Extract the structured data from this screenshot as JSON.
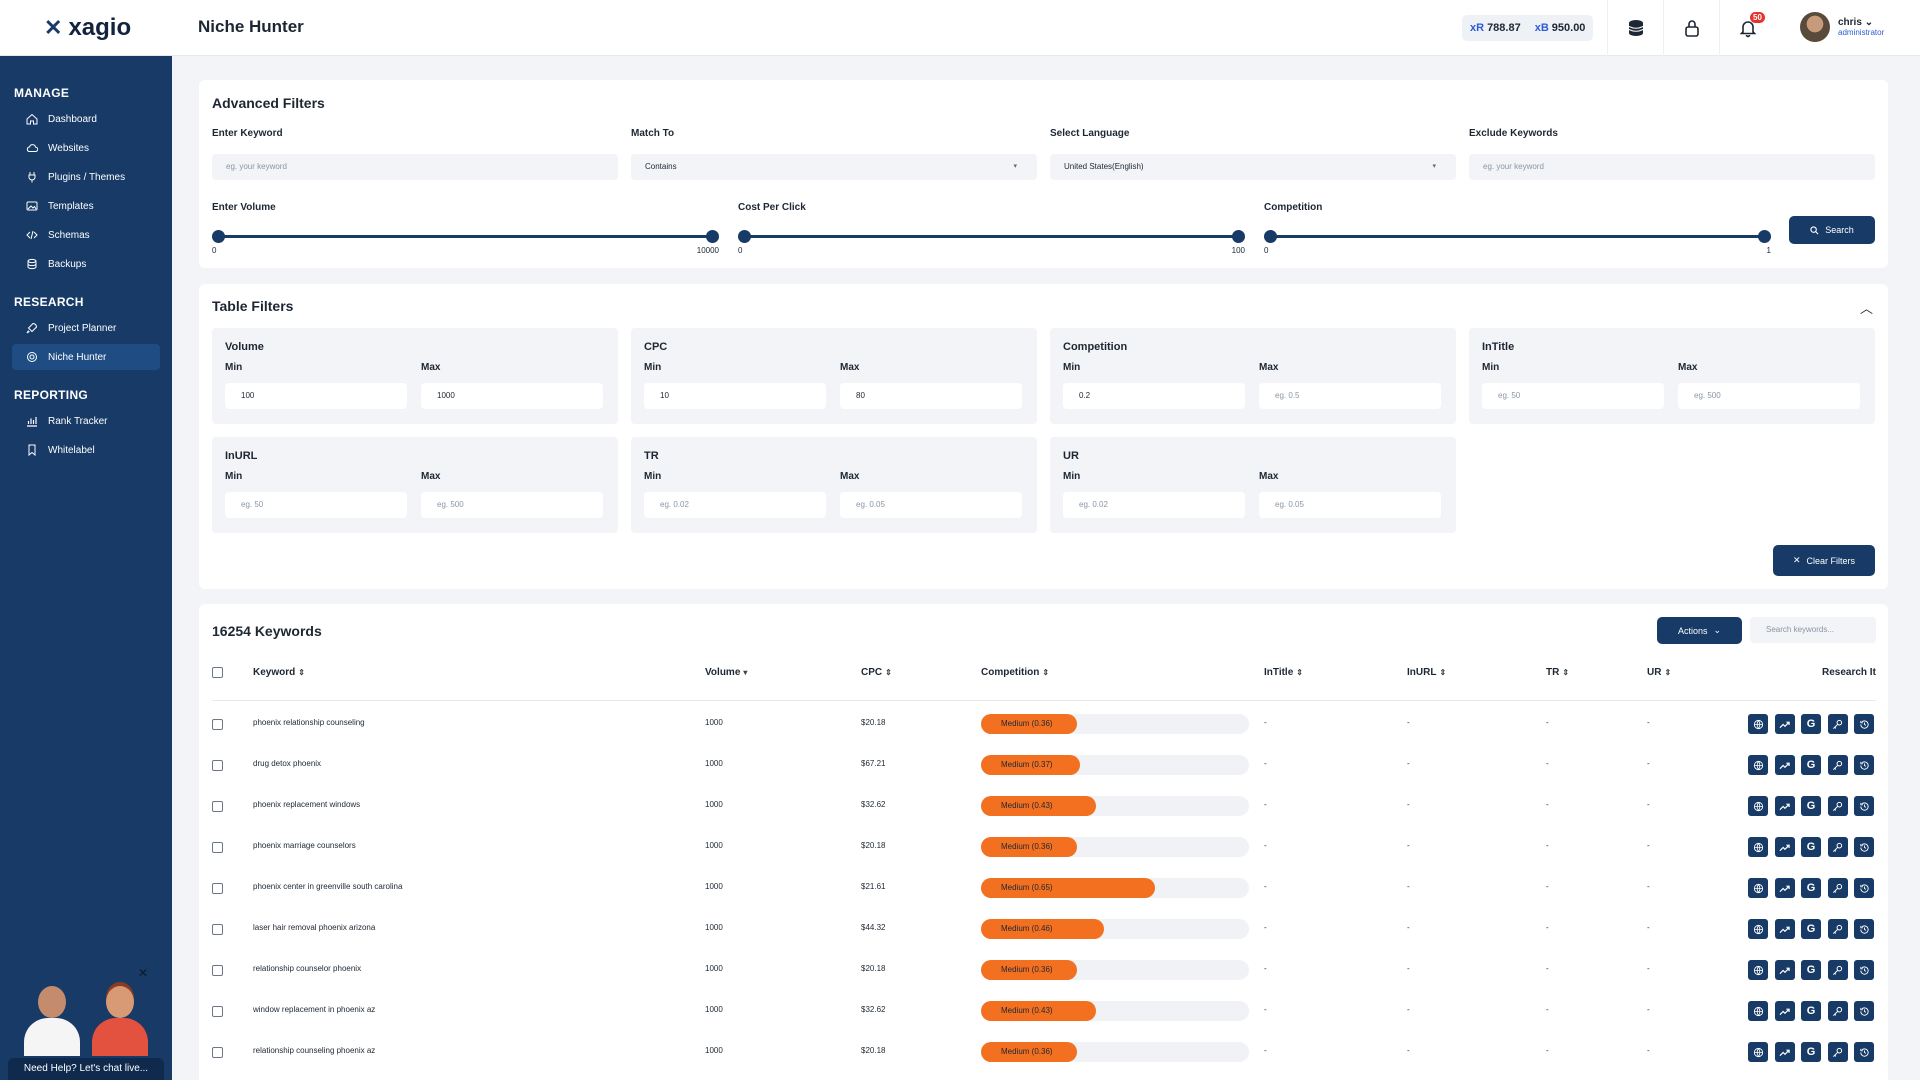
{
  "app": {
    "logo_text": "xagio",
    "page_title": "Niche Hunter"
  },
  "topbar": {
    "balance_r_prefix": "xR",
    "balance_r": "788.87",
    "balance_b_prefix": "xB",
    "balance_b": "950.00",
    "notification_count": "50",
    "user_name": "chris",
    "user_role": "administrator"
  },
  "sidebar": {
    "sections": [
      {
        "title": "MANAGE",
        "items": [
          "Dashboard",
          "Websites",
          "Plugins / Themes",
          "Templates",
          "Schemas",
          "Backups"
        ]
      },
      {
        "title": "RESEARCH",
        "items": [
          "Project Planner",
          "Niche Hunter"
        ]
      },
      {
        "title": "REPORTING",
        "items": [
          "Rank Tracker",
          "Whitelabel"
        ]
      }
    ],
    "active_item": "Niche Hunter",
    "help_text": "Need Help? Let's chat live..."
  },
  "advanced_filters": {
    "title": "Advanced Filters",
    "keyword_label": "Enter Keyword",
    "keyword_placeholder": "eg. your keyword",
    "match_label": "Match To",
    "match_value": "Contains",
    "language_label": "Select Language",
    "language_value": "United States(English)",
    "exclude_label": "Exclude Keywords",
    "exclude_placeholder": "eg. your keyword",
    "volume_label": "Enter Volume",
    "volume_min": "0",
    "volume_max": "10000",
    "cpc_label": "Cost Per Click",
    "cpc_min": "0",
    "cpc_max": "100",
    "competition_label": "Competition",
    "competition_min": "0",
    "competition_max": "1",
    "search_label": "Search"
  },
  "table_filters": {
    "title": "Table Filters",
    "min_label": "Min",
    "max_label": "Max",
    "groups": [
      {
        "title": "Volume",
        "min": "100",
        "max": "1000",
        "min_is_value": true,
        "max_is_value": true
      },
      {
        "title": "CPC",
        "min": "10",
        "max": "80",
        "min_is_value": true,
        "max_is_value": true
      },
      {
        "title": "Competition",
        "min": "0.2",
        "max": "eg. 0.5",
        "min_is_value": true,
        "max_is_value": false
      },
      {
        "title": "InTitle",
        "min": "eg. 50",
        "max": "eg. 500",
        "min_is_value": false,
        "max_is_value": false
      },
      {
        "title": "InURL",
        "min": "eg. 50",
        "max": "eg. 500",
        "min_is_value": false,
        "max_is_value": false
      },
      {
        "title": "TR",
        "min": "eg. 0.02",
        "max": "eg. 0.05",
        "min_is_value": false,
        "max_is_value": false
      },
      {
        "title": "UR",
        "min": "eg. 0.02",
        "max": "eg. 0.05",
        "min_is_value": false,
        "max_is_value": false
      }
    ],
    "clear_label": "Clear Filters"
  },
  "keywords": {
    "count_title": "16254 Keywords",
    "actions_label": "Actions",
    "search_placeholder": "Search keywords...",
    "columns": [
      "Keyword",
      "Volume",
      "CPC",
      "Competition",
      "InTitle",
      "InURL",
      "TR",
      "UR",
      "Research It"
    ],
    "rows": [
      {
        "keyword": "phoenix relationship counseling",
        "volume": "1000",
        "cpc": "$20.18",
        "competition_label": "Medium (0.36)",
        "competition": 0.36,
        "intitle": "-",
        "inurl": "-",
        "tr": "-",
        "ur": "-"
      },
      {
        "keyword": "drug detox phoenix",
        "volume": "1000",
        "cpc": "$67.21",
        "competition_label": "Medium (0.37)",
        "competition": 0.37,
        "intitle": "-",
        "inurl": "-",
        "tr": "-",
        "ur": "-"
      },
      {
        "keyword": "phoenix replacement windows",
        "volume": "1000",
        "cpc": "$32.62",
        "competition_label": "Medium (0.43)",
        "competition": 0.43,
        "intitle": "-",
        "inurl": "-",
        "tr": "-",
        "ur": "-"
      },
      {
        "keyword": "phoenix marriage counselors",
        "volume": "1000",
        "cpc": "$20.18",
        "competition_label": "Medium (0.36)",
        "competition": 0.36,
        "intitle": "-",
        "inurl": "-",
        "tr": "-",
        "ur": "-"
      },
      {
        "keyword": "phoenix center in greenville south carolina",
        "volume": "1000",
        "cpc": "$21.61",
        "competition_label": "Medium (0.65)",
        "competition": 0.65,
        "intitle": "-",
        "inurl": "-",
        "tr": "-",
        "ur": "-"
      },
      {
        "keyword": "laser hair removal phoenix arizona",
        "volume": "1000",
        "cpc": "$44.32",
        "competition_label": "Medium (0.46)",
        "competition": 0.46,
        "intitle": "-",
        "inurl": "-",
        "tr": "-",
        "ur": "-"
      },
      {
        "keyword": "relationship counselor phoenix",
        "volume": "1000",
        "cpc": "$20.18",
        "competition_label": "Medium (0.36)",
        "competition": 0.36,
        "intitle": "-",
        "inurl": "-",
        "tr": "-",
        "ur": "-"
      },
      {
        "keyword": "window replacement in phoenix az",
        "volume": "1000",
        "cpc": "$32.62",
        "competition_label": "Medium (0.43)",
        "competition": 0.43,
        "intitle": "-",
        "inurl": "-",
        "tr": "-",
        "ur": "-"
      },
      {
        "keyword": "relationship counseling phoenix az",
        "volume": "1000",
        "cpc": "$20.18",
        "competition_label": "Medium (0.36)",
        "competition": 0.36,
        "intitle": "-",
        "inurl": "-",
        "tr": "-",
        "ur": "-"
      }
    ],
    "research_icons": [
      "globe-icon",
      "trend-icon",
      "google-icon",
      "key-icon",
      "history-icon"
    ]
  },
  "colors": {
    "primary": "#173a66",
    "accent_orange": "#f37021",
    "link_blue": "#2e5bd7"
  }
}
